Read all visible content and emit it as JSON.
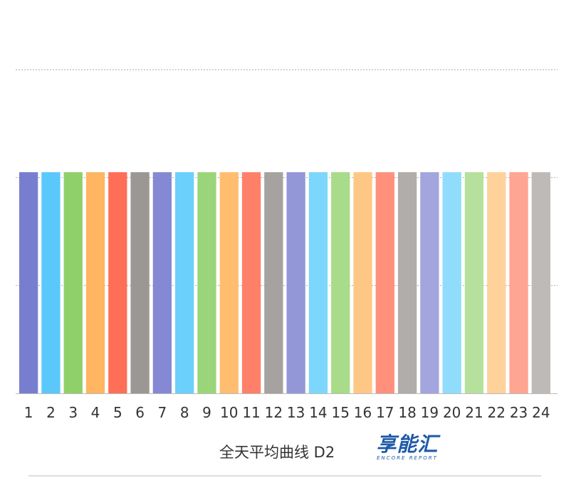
{
  "chart_data": {
    "type": "bar",
    "title": "全天平均曲线 D2",
    "xlabel": "",
    "ylabel": "",
    "categories": [
      "1",
      "2",
      "3",
      "4",
      "5",
      "6",
      "7",
      "8",
      "9",
      "10",
      "11",
      "12",
      "13",
      "14",
      "15",
      "16",
      "17",
      "18",
      "19",
      "20",
      "21",
      "22",
      "23",
      "24"
    ],
    "values": [
      2.05,
      2.05,
      2.05,
      2.05,
      2.05,
      2.05,
      2.05,
      2.05,
      2.05,
      2.05,
      2.05,
      2.05,
      2.05,
      2.05,
      2.05,
      2.05,
      2.05,
      2.05,
      2.05,
      2.05,
      2.05,
      2.05,
      2.05,
      2.05
    ],
    "ylim": [
      0,
      3
    ],
    "gridlines": [
      1,
      2,
      3
    ],
    "grid": true,
    "y_tick_labels_shown": false,
    "colors": [
      "#787ecf",
      "#5ac8fa",
      "#8fd06a",
      "#ffb561",
      "#ff6f57",
      "#9a9794",
      "#8589d3",
      "#6bd0fb",
      "#9bd57a",
      "#ffbd70",
      "#ff8068",
      "#a5a29f",
      "#9397d8",
      "#7dd6fb",
      "#a8db8a",
      "#ffc785",
      "#ff917c",
      "#b0adaa",
      "#a2a5de",
      "#90dcfc",
      "#b6e19c",
      "#ffd19b",
      "#ffa592",
      "#bdbab7"
    ]
  },
  "logo": {
    "main": "享能汇",
    "sub": "ENCORE REPORT"
  }
}
